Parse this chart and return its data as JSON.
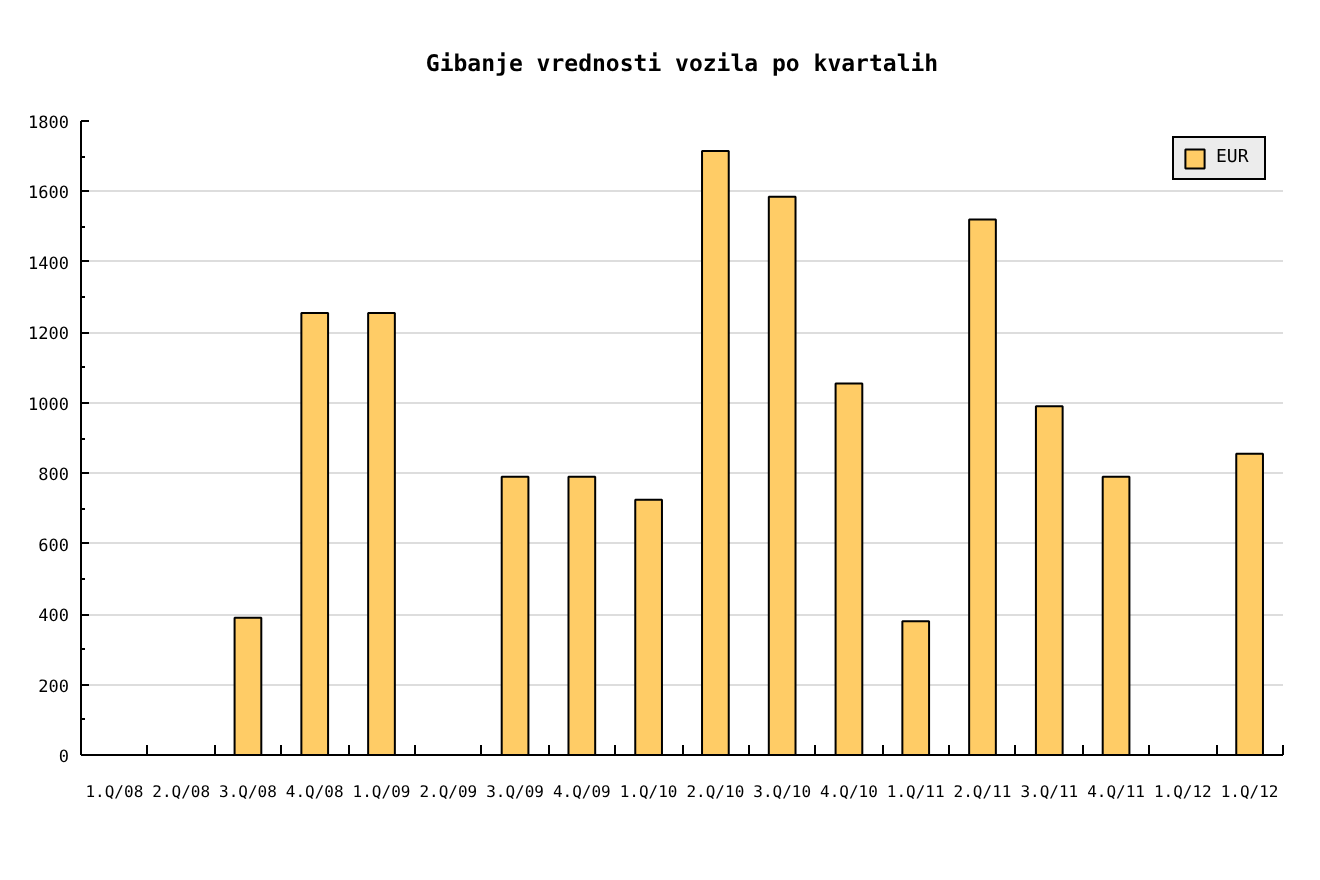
{
  "chart_data": {
    "type": "bar",
    "title": "Gibanje vrednosti vozila po kvartalih",
    "categories": [
      "1.Q/08",
      "2.Q/08",
      "3.Q/08",
      "4.Q/08",
      "1.Q/09",
      "2.Q/09",
      "3.Q/09",
      "4.Q/09",
      "1.Q/10",
      "2.Q/10",
      "3.Q/10",
      "4.Q/10",
      "1.Q/11",
      "2.Q/11",
      "3.Q/11",
      "4.Q/11",
      "1.Q/12",
      "1.Q/12"
    ],
    "series": [
      {
        "name": "EUR",
        "color": "#ffcc66",
        "values": [
          null,
          null,
          390,
          1255,
          1255,
          null,
          790,
          790,
          725,
          1715,
          1585,
          1055,
          380,
          1520,
          990,
          790,
          null,
          855
        ]
      }
    ],
    "ylim": [
      0,
      1800
    ],
    "yticks": [
      0,
      {
        "value": 100,
        "label": null
      },
      200,
      {
        "value": 300,
        "label": null
      },
      400,
      {
        "value": 500,
        "label": null
      },
      600,
      {
        "value": 700,
        "label": null
      },
      800,
      {
        "value": 900,
        "label": null
      },
      1000,
      {
        "value": 1100,
        "label": null
      },
      1200,
      {
        "value": 1300,
        "label": null
      },
      1400,
      {
        "value": 1500,
        "label": null
      },
      1600,
      {
        "value": 1700,
        "label": null
      },
      1800
    ],
    "grid": "y",
    "legend": "top right"
  }
}
